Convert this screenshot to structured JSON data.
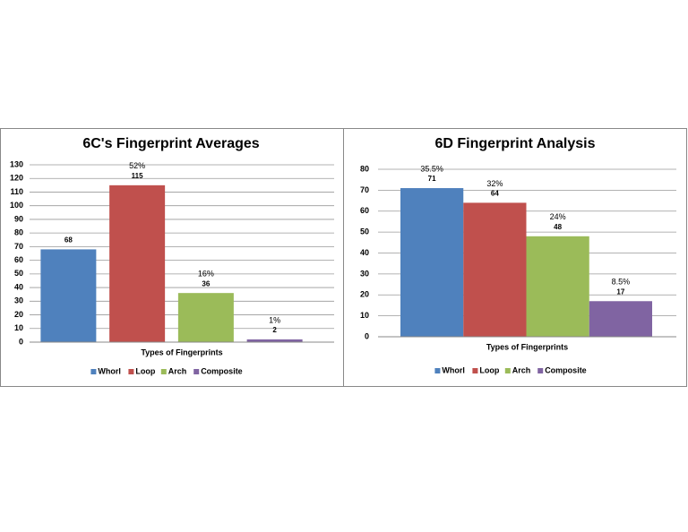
{
  "chart_data": [
    {
      "type": "bar",
      "title": "6C's Fingerprint Averages",
      "x_label": "Types of Fingerprints",
      "categories": [
        "Whorl",
        "Loop",
        "Arch",
        "Composite"
      ],
      "values": [
        68,
        115,
        36,
        2
      ],
      "share_labels": [
        null,
        "52%",
        "16%",
        "1%"
      ],
      "colors": [
        "#4f81bd",
        "#c0504d",
        "#9bbb59",
        "#8064a2"
      ],
      "ylim": [
        0,
        130
      ],
      "yticks": [
        0,
        10,
        20,
        30,
        40,
        50,
        60,
        70,
        80,
        90,
        100,
        110,
        120,
        130
      ],
      "grid": true,
      "legend": "bottom"
    },
    {
      "type": "bar",
      "title": "6D Fingerprint Analysis",
      "x_label": "Types of Fingerprints",
      "categories": [
        "Whorl",
        "Loop",
        "Arch",
        "Composite"
      ],
      "values": [
        71,
        64,
        48,
        17
      ],
      "share_labels": [
        "35.5%",
        "32%",
        "24%",
        "8.5%"
      ],
      "colors": [
        "#4f81bd",
        "#c0504d",
        "#9bbb59",
        "#8064a2"
      ],
      "ylim": [
        0,
        80
      ],
      "yticks": [
        0,
        10,
        20,
        30,
        40,
        50,
        60,
        70,
        80
      ],
      "grid": true,
      "legend": "bottom"
    }
  ]
}
